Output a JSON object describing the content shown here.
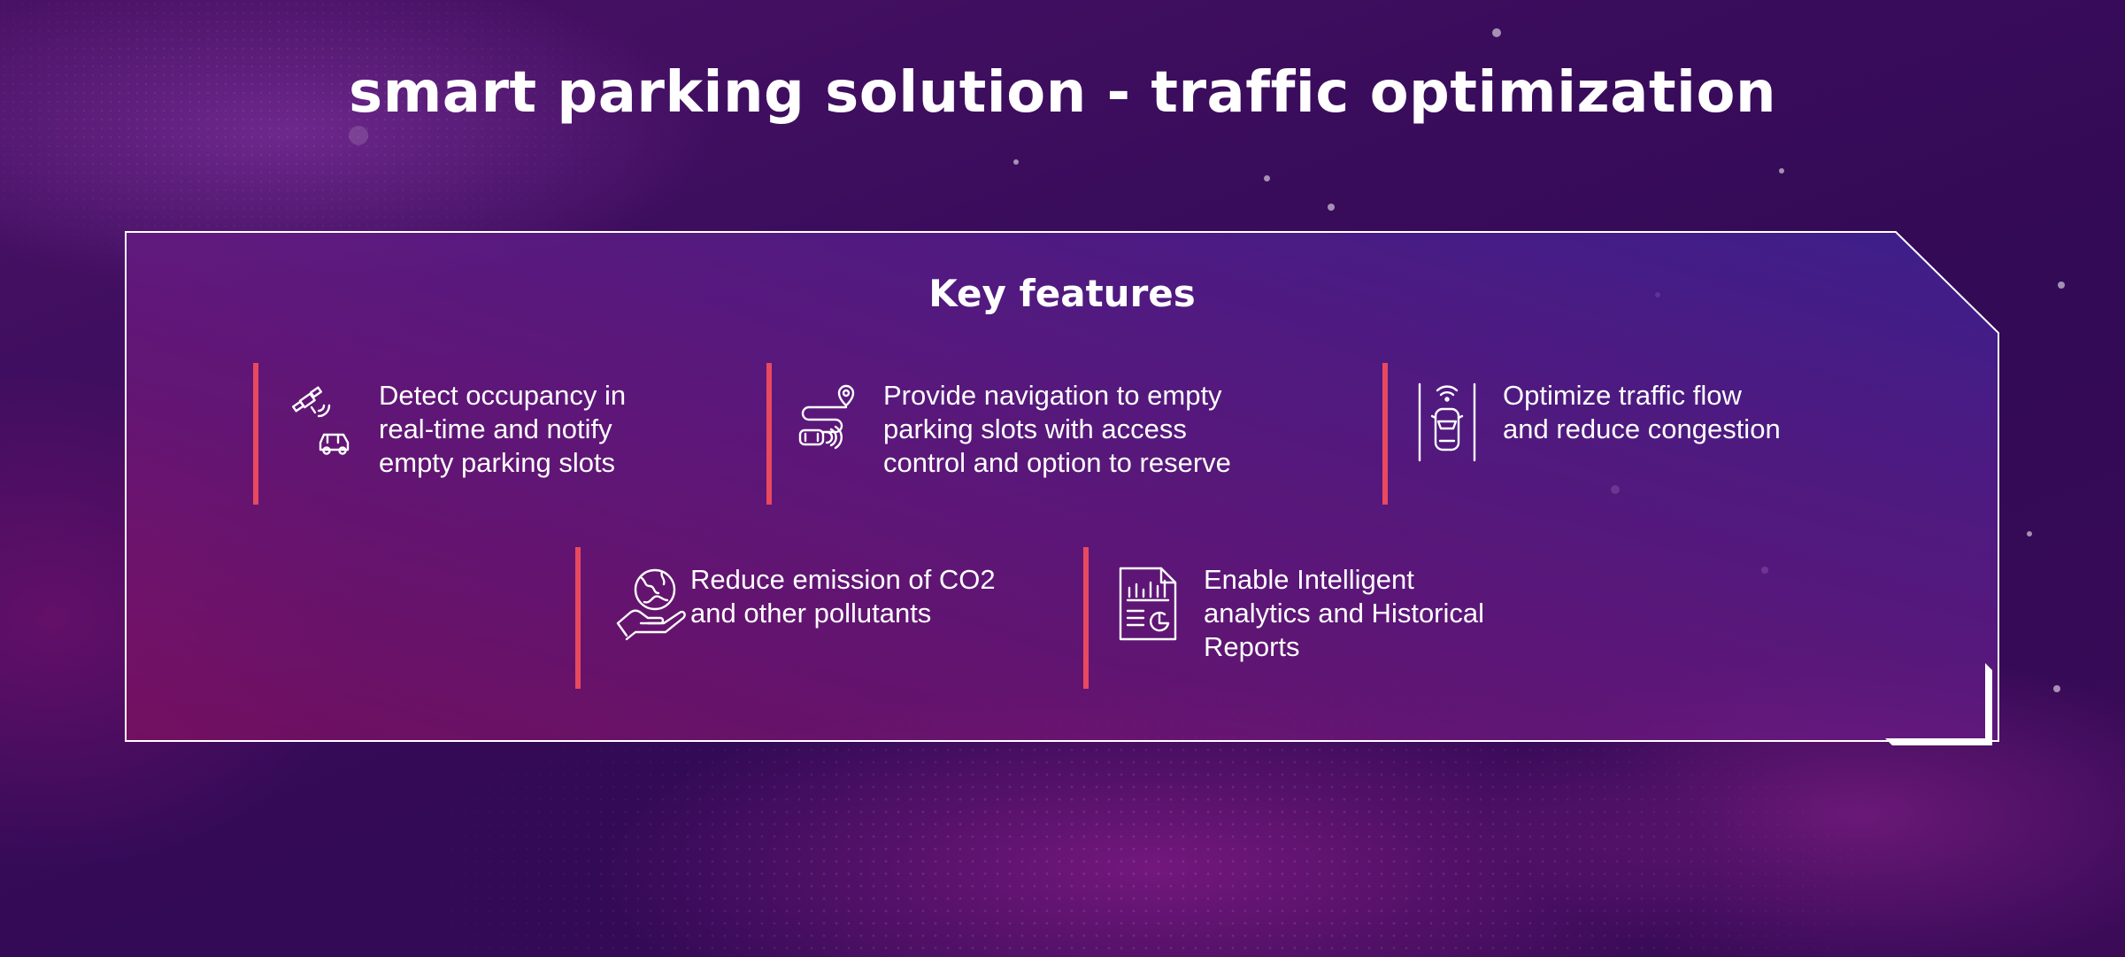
{
  "title": "smart parking solution - traffic optimization",
  "panel": {
    "heading": "Key features",
    "features": [
      {
        "icon": "satellite-car-icon",
        "text": "Detect occupancy in\nreal-time and notify\nempty parking slots"
      },
      {
        "icon": "route-navigation-icon",
        "text": "Provide navigation to empty\nparking slots with access\ncontrol and option to reserve"
      },
      {
        "icon": "smart-car-lane-icon",
        "text": "Optimize traffic flow\nand reduce congestion"
      },
      {
        "icon": "globe-in-hand-icon",
        "text": "Reduce emission of CO2\nand other pollutants"
      },
      {
        "icon": "analytics-report-icon",
        "text": "Enable Intelligent\nanalytics and Historical\nReports"
      }
    ]
  },
  "colors": {
    "accent_bar": "#e8495f",
    "background": "#3a0c5c",
    "text": "#ffffff"
  }
}
